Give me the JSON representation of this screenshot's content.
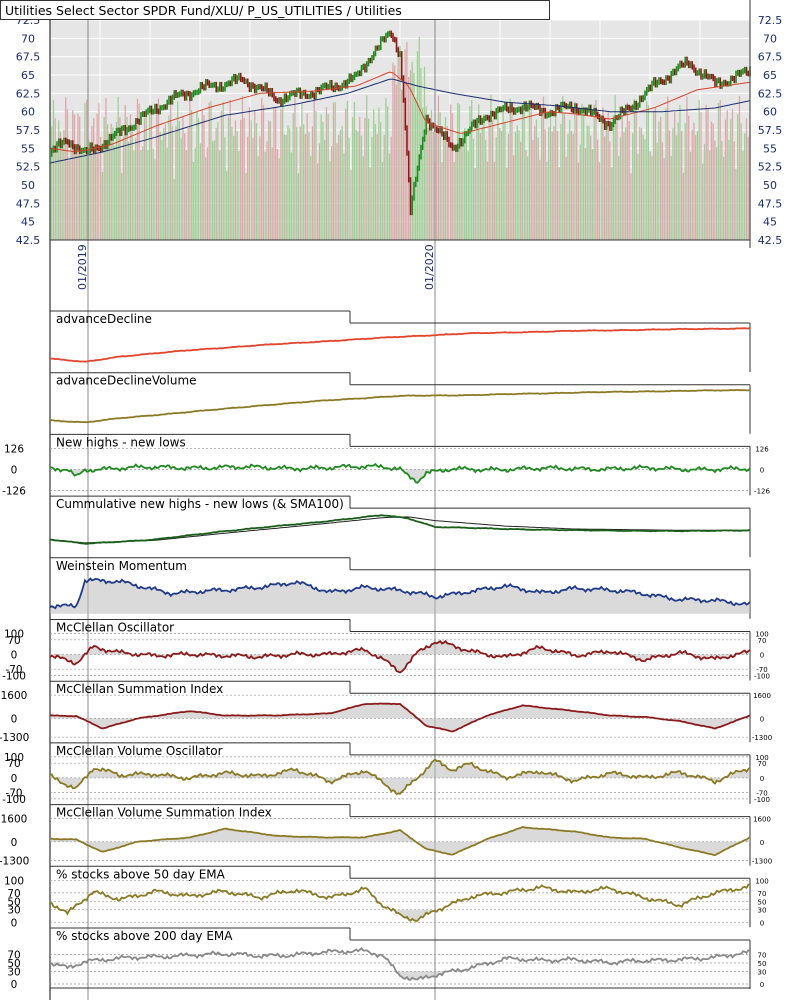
{
  "header": {
    "title": "Utilities Select Sector SPDR Fund/XLU/ P_US_UTILITIES / Utilities"
  },
  "colors": {
    "panel_bg": "#e6e6e6",
    "grid": "#ffffff",
    "vline": "#888888",
    "axis_text": "#1a2f6e",
    "price_up": "#1f8a1f",
    "price_down": "#8b1a1a",
    "vol_up": "#9fcf97",
    "vol_down": "#dba9a9",
    "ema_fast": "#d6432b",
    "ema_slow": "#1a2f6e",
    "sma_mid": "#a0522d",
    "ad_line": "#e2452a",
    "olive": "#8b7a25",
    "green": "#1f8a1f",
    "navy": "#1f3b8a",
    "maroon": "#8b1a1a",
    "gray": "#888888",
    "fill": "#bbbbbb"
  },
  "chart_data": {
    "type": "line",
    "price_panel": {
      "yticks": [
        "72.5",
        "70",
        "67.5",
        "65",
        "62.5",
        "60",
        "57.5",
        "55",
        "52.5",
        "50",
        "47.5",
        "45",
        "42.5"
      ],
      "ylim": [
        42.5,
        72.5
      ],
      "date_labels": [
        "01/2019",
        "01/2020"
      ],
      "series": [
        {
          "kind": "price",
          "x": [
            0,
            10,
            20,
            35,
            50,
            70,
            90,
            110,
            130,
            145,
            160,
            175,
            185,
            195,
            200,
            202,
            206,
            215,
            230,
            250,
            270,
            285,
            300,
            320,
            345,
            365,
            380,
            400
          ],
          "values": [
            54.2,
            56,
            54,
            56.5,
            59,
            61.5,
            63.5,
            64.5,
            61.5,
            62.5,
            63.5,
            64.5,
            68,
            70.5,
            68,
            62,
            46.5,
            59.5,
            55,
            59.5,
            61,
            60,
            60.5,
            58.5,
            63.5,
            66.5,
            64,
            65.5
          ]
        },
        {
          "kind": "ema50",
          "x": [
            0,
            15,
            35,
            60,
            90,
            120,
            150,
            175,
            195,
            205,
            215,
            235,
            260,
            285,
            300,
            320,
            345,
            370,
            400
          ],
          "values": [
            55,
            54.5,
            55.5,
            58,
            60.5,
            62.5,
            62.8,
            63.5,
            65.5,
            63.5,
            58.5,
            57,
            58.5,
            60,
            59.7,
            59,
            60.5,
            63,
            64
          ]
        },
        {
          "kind": "sma200",
          "x": [
            0,
            30,
            60,
            100,
            140,
            170,
            195,
            210,
            230,
            260,
            290,
            320,
            350,
            380,
            400
          ],
          "values": [
            53,
            54.5,
            56.5,
            59.5,
            61,
            62.5,
            64.5,
            63.5,
            62.5,
            61.3,
            60.8,
            60,
            60,
            60.5,
            61.5
          ]
        }
      ]
    },
    "panels": [
      {
        "title": "advanceDecline",
        "color": "#e2452a",
        "ylim": [
          0,
          100
        ],
        "x": [
          0,
          20,
          40,
          80,
          120,
          160,
          200,
          240,
          300,
          360,
          400
        ],
        "values": [
          20,
          12,
          25,
          40,
          52,
          62,
          72,
          80,
          86,
          90,
          92
        ]
      },
      {
        "title": "advanceDeclineVolume",
        "color": "#8b7a25",
        "ylim": [
          0,
          100
        ],
        "x": [
          0,
          20,
          40,
          80,
          120,
          160,
          200,
          240,
          300,
          360,
          400
        ],
        "values": [
          20,
          15,
          25,
          40,
          55,
          68,
          78,
          80,
          86,
          90,
          92
        ]
      },
      {
        "title": "New highs - new lows",
        "color": "#1f8a1f",
        "ylim": [
          -126,
          126
        ],
        "ticks": [
          "126",
          "0",
          "-126"
        ],
        "tick_values": [
          126,
          0,
          -126
        ],
        "fill_below_zero": true,
        "x": [
          0,
          10,
          15,
          20,
          40,
          70,
          100,
          130,
          160,
          190,
          200,
          205,
          210,
          215,
          230,
          270,
          300,
          340,
          400
        ],
        "values": [
          0,
          0,
          -45,
          0,
          8,
          12,
          12,
          10,
          8,
          20,
          5,
          -40,
          -70,
          -25,
          0,
          3,
          5,
          5,
          0
        ]
      },
      {
        "title": "Cummulative new highs - new lows (& SMA100)",
        "color": "#1a5e1a",
        "sma_color": "#222222",
        "ylim": [
          0,
          100
        ],
        "x": [
          0,
          20,
          60,
          100,
          150,
          190,
          205,
          220,
          260,
          300,
          360,
          400
        ],
        "values": [
          30,
          20,
          30,
          50,
          70,
          88,
          80,
          60,
          55,
          52,
          50,
          52
        ],
        "sma_x": [
          0,
          20,
          60,
          100,
          150,
          190,
          205,
          220,
          260,
          300,
          360,
          400
        ],
        "sma_values": [
          30,
          22,
          28,
          45,
          65,
          82,
          84,
          75,
          62,
          55,
          52,
          52
        ]
      },
      {
        "title": "Weinstein Momentum",
        "color": "#1f3b8a",
        "fill_down": true,
        "ylim": [
          0,
          100
        ],
        "x": [
          0,
          15,
          20,
          40,
          70,
          100,
          120,
          140,
          160,
          180,
          200,
          220,
          240,
          260,
          280,
          300,
          320,
          340,
          360,
          380,
          400
        ],
        "values": [
          20,
          20,
          80,
          75,
          50,
          55,
          65,
          75,
          50,
          65,
          55,
          40,
          55,
          65,
          50,
          62,
          55,
          48,
          35,
          30,
          22
        ]
      },
      {
        "title": "McClellan Oscillator",
        "color": "#8b1a1a",
        "ylim": [
          -100,
          100
        ],
        "ticks": [
          "100",
          "70",
          "0",
          "-70",
          "-100"
        ],
        "tick_values": [
          100,
          70,
          0,
          -70,
          -100
        ],
        "fill_zero": true,
        "x": [
          0,
          15,
          25,
          40,
          60,
          80,
          100,
          120,
          140,
          160,
          180,
          190,
          200,
          210,
          220,
          230,
          240,
          260,
          280,
          300,
          320,
          340,
          360,
          380,
          400
        ],
        "values": [
          -10,
          -40,
          40,
          10,
          -10,
          5,
          -5,
          -15,
          5,
          0,
          20,
          -20,
          -80,
          10,
          60,
          40,
          15,
          -10,
          30,
          -5,
          20,
          -30,
          10,
          -20,
          10
        ]
      },
      {
        "title": "McClellan Summation Index",
        "color": "#8b1a1a",
        "ylim": [
          -1300,
          1600
        ],
        "ticks": [
          "1600",
          "0",
          "-1300"
        ],
        "tick_values": [
          1600,
          0,
          -1300
        ],
        "fill_zero": true,
        "x": [
          0,
          15,
          30,
          50,
          80,
          100,
          130,
          160,
          180,
          200,
          215,
          230,
          250,
          270,
          300,
          320,
          340,
          360,
          380,
          400
        ],
        "values": [
          200,
          150,
          -700,
          0,
          500,
          200,
          200,
          350,
          1000,
          1000,
          -500,
          -900,
          200,
          900,
          500,
          200,
          100,
          -200,
          -700,
          200
        ]
      },
      {
        "title": "McClellan Volume Oscillator",
        "color": "#8b7a25",
        "ylim": [
          -100,
          100
        ],
        "ticks": [
          "100",
          "70",
          "0",
          "-70",
          "-100"
        ],
        "tick_values": [
          100,
          70,
          0,
          -70,
          -100
        ],
        "fill_zero": true,
        "x": [
          0,
          15,
          25,
          40,
          60,
          80,
          100,
          120,
          140,
          160,
          180,
          200,
          210,
          220,
          230,
          240,
          260,
          280,
          300,
          320,
          340,
          360,
          380,
          400
        ],
        "values": [
          10,
          -50,
          50,
          10,
          20,
          0,
          20,
          10,
          40,
          -20,
          40,
          -80,
          0,
          80,
          40,
          70,
          0,
          30,
          -10,
          20,
          0,
          30,
          -20,
          50
        ]
      },
      {
        "title": "McClellan Volume Summation Index",
        "color": "#8b7a25",
        "ylim": [
          -1300,
          1600
        ],
        "ticks": [
          "1600",
          "0",
          "-1300"
        ],
        "tick_values": [
          1600,
          0,
          -1300
        ],
        "fill_zero": true,
        "x": [
          0,
          15,
          30,
          50,
          80,
          100,
          130,
          160,
          180,
          200,
          215,
          230,
          250,
          270,
          300,
          320,
          340,
          360,
          380,
          400
        ],
        "values": [
          200,
          150,
          -700,
          0,
          300,
          900,
          400,
          300,
          300,
          800,
          -500,
          -900,
          200,
          1000,
          700,
          300,
          200,
          -400,
          -900,
          300
        ]
      },
      {
        "title": "% stocks above 50 day EMA",
        "color": "#8b7a25",
        "ylim": [
          0,
          100
        ],
        "ticks": [
          "100",
          "70",
          "50",
          "30",
          "0"
        ],
        "tick_values": [
          100,
          70,
          50,
          30,
          0
        ],
        "fill_zero": false,
        "fill_below": 30,
        "x": [
          0,
          10,
          15,
          25,
          40,
          60,
          80,
          100,
          120,
          140,
          160,
          180,
          190,
          200,
          210,
          220,
          240,
          260,
          280,
          300,
          320,
          340,
          360,
          380,
          400
        ],
        "values": [
          50,
          20,
          40,
          70,
          55,
          75,
          60,
          75,
          60,
          75,
          60,
          80,
          40,
          15,
          5,
          30,
          60,
          70,
          85,
          70,
          80,
          60,
          40,
          70,
          88
        ]
      },
      {
        "title": "% stocks above 200 day EMA",
        "color": "#888888",
        "ylim": [
          0,
          100
        ],
        "ticks": [
          "70",
          "50",
          "30",
          "0"
        ],
        "tick_values": [
          70,
          50,
          30,
          0
        ],
        "fill_zero": false,
        "fill_below": 30,
        "x": [
          0,
          10,
          20,
          40,
          60,
          80,
          100,
          120,
          140,
          160,
          180,
          190,
          200,
          210,
          220,
          240,
          260,
          280,
          300,
          320,
          340,
          360,
          380,
          400
        ],
        "values": [
          50,
          40,
          55,
          60,
          65,
          70,
          70,
          68,
          70,
          75,
          80,
          70,
          20,
          8,
          20,
          40,
          60,
          55,
          60,
          50,
          55,
          60,
          62,
          75
        ]
      }
    ]
  }
}
